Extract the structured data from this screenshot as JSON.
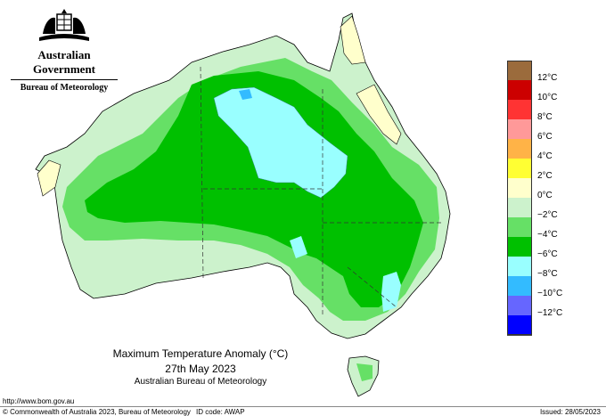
{
  "header": {
    "gov_name": "Australian Government",
    "bureau": "Bureau of Meteorology",
    "crest_icon": "coat-of-arms-icon"
  },
  "map": {
    "title": "Maximum Temperature Anomaly (°C)",
    "date": "27th May 2023",
    "source": "Australian Bureau of Meteorology"
  },
  "legend": {
    "entries": [
      {
        "label": "12°C",
        "color": "#9b6b3c"
      },
      {
        "label": "10°C",
        "color": "#cc0000"
      },
      {
        "label": "8°C",
        "color": "#ff3333"
      },
      {
        "label": "6°C",
        "color": "#ff9999"
      },
      {
        "label": "4°C",
        "color": "#ffb347"
      },
      {
        "label": "2°C",
        "color": "#ffff33"
      },
      {
        "label": "0°C",
        "color": "#ffffcc"
      },
      {
        "label": "−2°C",
        "color": "#ccf2cc"
      },
      {
        "label": "−4°C",
        "color": "#66e066"
      },
      {
        "label": "−6°C",
        "color": "#00c000"
      },
      {
        "label": "−8°C",
        "color": "#99ffff"
      },
      {
        "label": "−10°C",
        "color": "#33bbff"
      },
      {
        "label": "−12°C",
        "color": "#6666ff"
      },
      {
        "label": "",
        "color": "#0000ff"
      }
    ]
  },
  "footer": {
    "url": "http://www.bom.gov.au",
    "copyright": "© Commonwealth of Australia 2023, Bureau of Meteorology",
    "id_code": "ID code: AWAP",
    "issued": "Issued: 28/05/2023"
  }
}
